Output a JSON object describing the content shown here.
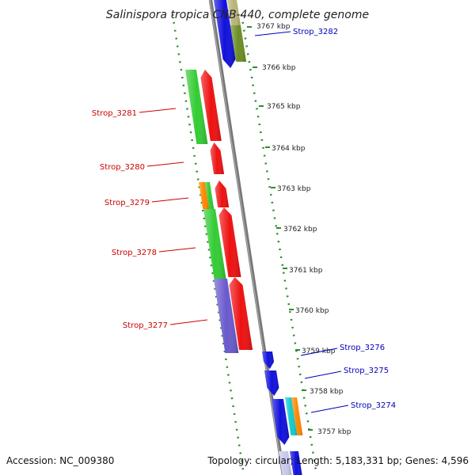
{
  "header": {
    "title": "Salinispora tropica CNB-440, complete genome"
  },
  "footer": {
    "accession": "Accession: NC_009380",
    "topology": "Topology: circular; Length: 5,183,331 bp; Genes: 4,596"
  },
  "colors": {
    "backbone": "#777777",
    "tick_marks": "#2e8b2e",
    "left_gene_labels": "#cc0000",
    "right_gene_labels": "#0000bb",
    "gene_green": "#33cc33",
    "gene_red": "#ee1111",
    "gene_orange": "#ff8800",
    "gene_purple": "#6a5acd",
    "gene_blue": "#1111dd",
    "gene_olive": "#6b8e23",
    "gene_khaki": "#b8b478",
    "gene_cyan": "#11cccc"
  },
  "scale_labels": [
    "3767 kbp",
    "3766 kbp",
    "3765 kbp",
    "3764 kbp",
    "3763 kbp",
    "3762 kbp",
    "3761 kbp",
    "3760 kbp",
    "3759 kbp",
    "3758 kbp",
    "3757 kbp"
  ],
  "genes_left": [
    {
      "name": "Strop_3281"
    },
    {
      "name": "Strop_3280"
    },
    {
      "name": "Strop_3279"
    },
    {
      "name": "Strop_3278"
    },
    {
      "name": "Strop_3277"
    }
  ],
  "genes_right": [
    {
      "name": "Strop_3282"
    },
    {
      "name": "Strop_3276"
    },
    {
      "name": "Strop_3275"
    },
    {
      "name": "Strop_3274"
    }
  ]
}
